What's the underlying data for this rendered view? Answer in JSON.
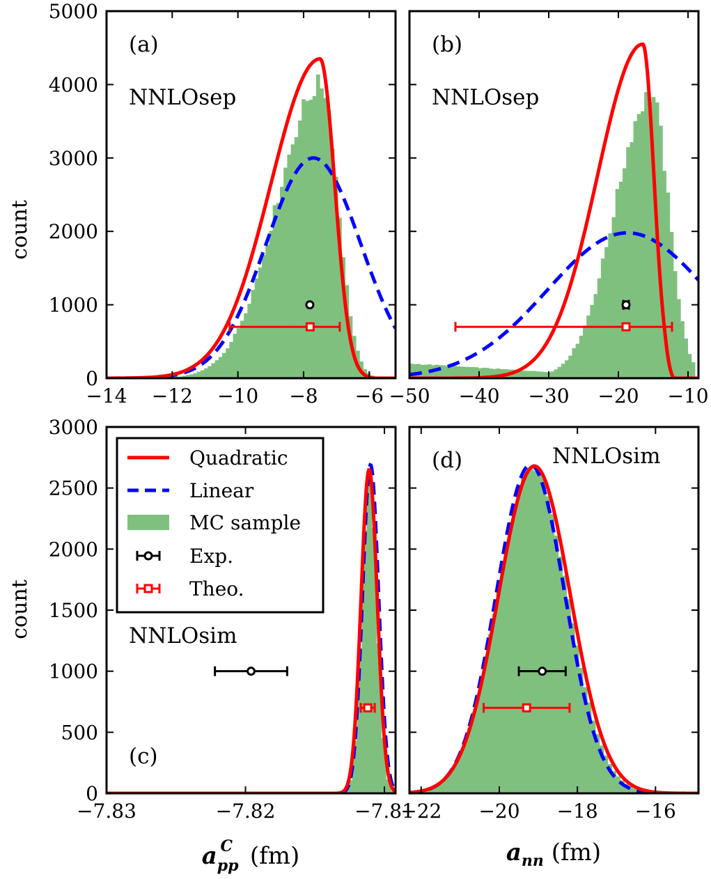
{
  "colors": {
    "quadratic": "#ff0000",
    "linear": "#0000ff",
    "hist": "#7fc07f",
    "exp": "#000000",
    "theo": "#ff0000"
  },
  "ylabel": "count",
  "legend": {
    "placement": "inside panel (c), upper-left",
    "entries": [
      {
        "key": "quad",
        "label": "Quadratic",
        "style": "red-solid-line"
      },
      {
        "key": "lin",
        "label": "Linear",
        "style": "blue-dashed-line"
      },
      {
        "key": "mc",
        "label": "MC sample",
        "style": "green-patch"
      },
      {
        "key": "exp",
        "label": "Exp.",
        "style": "black-errorbar-circle"
      },
      {
        "key": "theo",
        "label": "Theo.",
        "style": "red-errorbar-square"
      }
    ]
  },
  "chart_data": [
    {
      "id": "a",
      "tag": "(a)",
      "type": "histogram+line",
      "label": "NNLOsep",
      "xlabel": "",
      "ylabel": "count",
      "xlim": [
        -14,
        -5.2
      ],
      "ylim": [
        0,
        5000
      ],
      "xticks": [
        -14,
        -12,
        -10,
        -8,
        -6
      ],
      "xtick_labels": [
        "−14",
        "−12",
        "−10",
        "−8",
        "−6"
      ],
      "yticks": [
        0,
        1000,
        2000,
        3000,
        4000,
        5000
      ],
      "ytick_labels": [
        "0",
        "1000",
        "2000",
        "3000",
        "4000",
        "5000"
      ],
      "hist": {
        "skew": "left",
        "peak_x": -7.45,
        "peak_count": 4000,
        "width_left": 1.35,
        "width_right": 0.5,
        "floor_right": -5.6,
        "bins": 80,
        "noise": 0.04,
        "tail_start": -10.3,
        "tail_level": 380
      },
      "quadratic": {
        "shape": "skewed",
        "peak_x": -7.5,
        "peak_count": 4350,
        "width_left": 1.5,
        "width_right": 0.45,
        "cutoff": -6.2
      },
      "linear": {
        "shape": "gaussian",
        "mu": -7.7,
        "sigma": 1.45,
        "peak_count": 3000
      },
      "exp": {
        "x": -7.81,
        "xerr": [
          0.0,
          0.0
        ],
        "y": 1000
      },
      "theo": {
        "x": -7.8,
        "xerr": [
          2.45,
          0.9
        ],
        "y": 700
      }
    },
    {
      "id": "b",
      "tag": "(b)",
      "type": "histogram+line",
      "label": "NNLOsep",
      "xlabel": "",
      "ylabel": "",
      "xlim": [
        -50,
        -8.5
      ],
      "ylim": [
        0,
        5000
      ],
      "xticks": [
        -50,
        -40,
        -30,
        -20,
        -10
      ],
      "xtick_labels": [
        "−50",
        "−40",
        "−30",
        "−20",
        "−10"
      ],
      "yticks": [
        0,
        1000,
        2000,
        3000,
        4000,
        5000
      ],
      "ytick_labels": [],
      "hist": {
        "skew": "left",
        "peak_x": -15.3,
        "peak_count": 3850,
        "width_left": 5.2,
        "width_right": 2.5,
        "floor_right": -9.0,
        "bins": 80,
        "noise": 0.04,
        "tail_start": -50,
        "tail_level": 200
      },
      "quadratic": {
        "shape": "skewed",
        "peak_x": -16.5,
        "peak_count": 4550,
        "width_left": 6.5,
        "width_right": 1.6,
        "cutoff": -13.5,
        "left_tail": 280
      },
      "linear": {
        "shape": "gaussian",
        "mu": -18.7,
        "sigma": 11.5,
        "peak_count": 1980
      },
      "exp": {
        "x": -18.9,
        "xerr": [
          0.4,
          0.4
        ],
        "y": 1000
      },
      "theo": {
        "x": -18.9,
        "xerr": [
          24.5,
          6.6
        ],
        "y": 700
      }
    },
    {
      "id": "c",
      "tag": "(c)",
      "type": "histogram+line",
      "label": "NNLOsim",
      "xlabel": "a_pp^C (fm)",
      "ylabel": "count",
      "xlim": [
        -7.83,
        -7.8092
      ],
      "ylim": [
        0,
        3000
      ],
      "xticks": [
        -7.83,
        -7.82,
        -7.81
      ],
      "xtick_labels": [
        "−7.83",
        "−7.82",
        "−7.81"
      ],
      "yticks": [
        0,
        500,
        1000,
        1500,
        2000,
        2500,
        3000
      ],
      "ytick_labels": [
        "0",
        "500",
        "1000",
        "1500",
        "2000",
        "2500",
        "3000"
      ],
      "hist": {
        "skew": "none",
        "mu": -7.8111,
        "sigma": 0.00055,
        "peak_count": 2650,
        "bins": 60,
        "noise": 0.01
      },
      "quadratic": {
        "shape": "gaussian",
        "mu": -7.8111,
        "sigma": 0.00058,
        "peak_count": 2650
      },
      "linear": {
        "shape": "gaussian",
        "mu": -7.811,
        "sigma": 0.00058,
        "peak_count": 2690
      },
      "exp": {
        "x": -7.8196,
        "xerr": [
          0.0026,
          0.0026
        ],
        "y": 1000
      },
      "theo": {
        "x": -7.8112,
        "xerr": [
          0.0005,
          0.0005
        ],
        "y": 700
      }
    },
    {
      "id": "d",
      "tag": "(d)",
      "type": "histogram+line",
      "label": "NNLOsim",
      "xlabel": "a_nn (fm)",
      "ylabel": "",
      "xlim": [
        -22.3,
        -14.9
      ],
      "ylim": [
        0,
        3000
      ],
      "xticks": [
        -22,
        -20,
        -18,
        -16
      ],
      "xtick_labels": [
        "−22",
        "−20",
        "−18",
        "−16"
      ],
      "yticks": [
        0,
        500,
        1000,
        1500,
        2000,
        2500,
        3000
      ],
      "ytick_labels": [],
      "hist": {
        "skew": "none",
        "mu": -19.15,
        "sigma": 0.9,
        "peak_count": 2680,
        "bins": 70,
        "noise": 0.015
      },
      "quadratic": {
        "shape": "gaussian",
        "mu": -19.1,
        "sigma": 0.92,
        "peak_count": 2680
      },
      "linear": {
        "shape": "gaussian",
        "mu": -19.2,
        "sigma": 0.88,
        "peak_count": 2690
      },
      "exp": {
        "x": -18.9,
        "xerr": [
          0.6,
          0.6
        ],
        "y": 1000
      },
      "theo": {
        "x": -19.3,
        "xerr": [
          1.1,
          1.1
        ],
        "y": 700
      }
    }
  ]
}
